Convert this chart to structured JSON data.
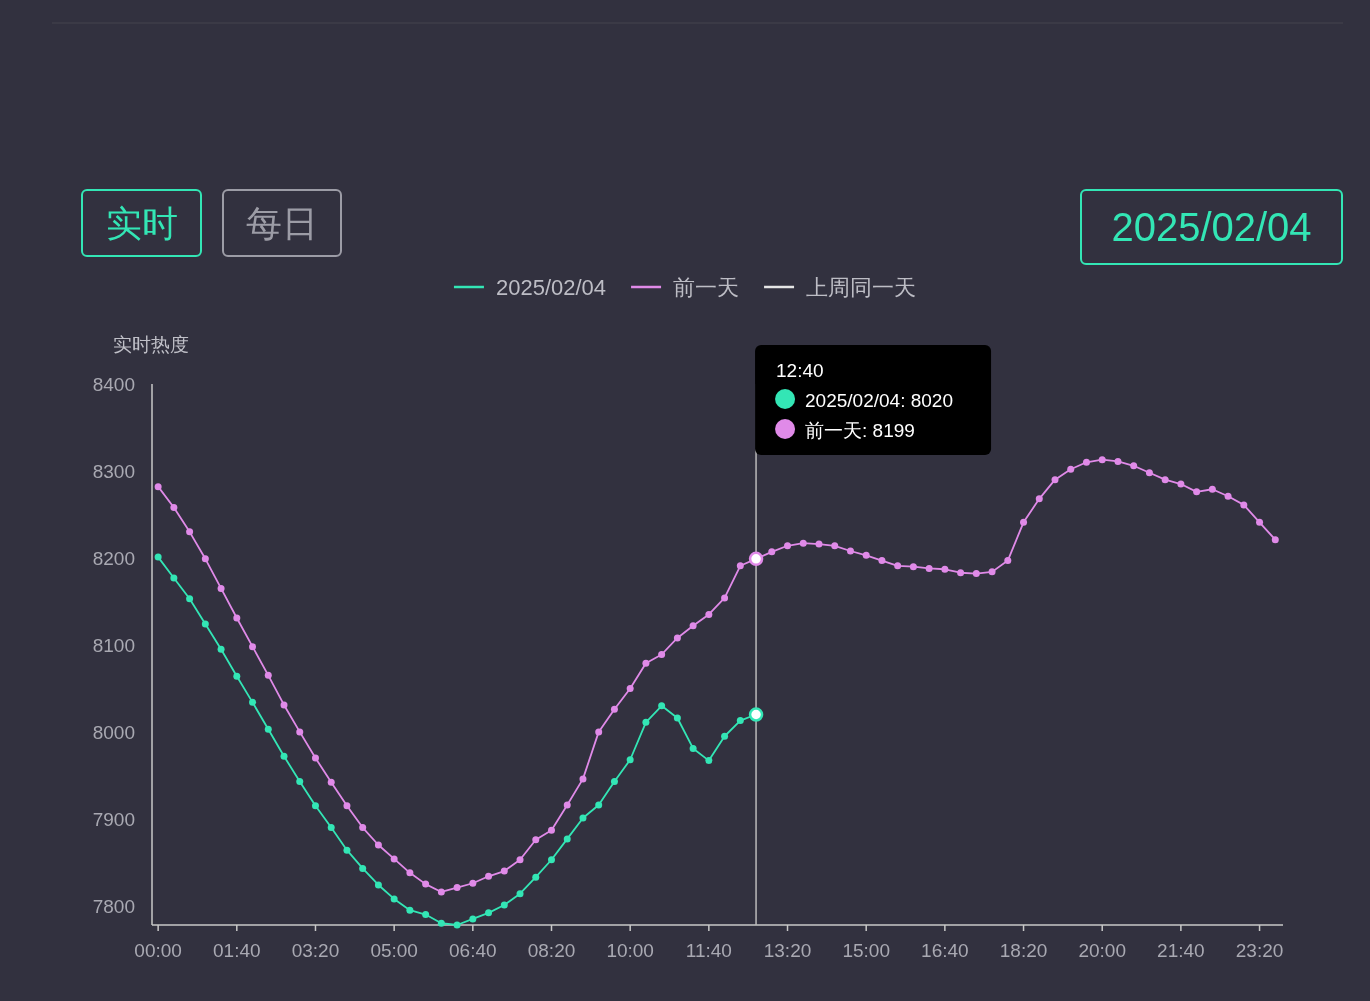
{
  "chart_data": {
    "type": "line",
    "ylabel": "实时热度",
    "annotations": [
      "实时",
      "每日",
      "2025/02/04",
      "12:40",
      "2025/02/04: 8020",
      "前一天: 8199"
    ],
    "x": [
      0,
      0.3333,
      0.6667,
      1,
      1.3333,
      1.6667,
      2,
      2.3333,
      2.6667,
      3,
      3.3333,
      3.6667,
      4,
      4.3333,
      4.6667,
      5,
      5.3333,
      5.6667,
      6,
      6.3333,
      6.6667,
      7,
      7.3333,
      7.6667,
      8,
      8.3333,
      8.6667,
      9,
      9.3333,
      9.6667,
      10,
      10.3333,
      10.6667,
      11,
      11.3333,
      11.6667,
      12,
      12.3333,
      12.6667,
      13,
      13.3333,
      13.6667,
      14,
      14.3333,
      14.6667,
      15,
      15.3333,
      15.6667,
      16,
      16.3333,
      16.6667,
      17,
      17.3333,
      17.6667,
      18,
      18.3333,
      18.6667,
      19,
      19.3333,
      19.6667,
      20,
      20.3333,
      20.6667,
      21,
      21.3333,
      21.6667,
      22,
      22.3333,
      22.6667,
      23,
      23.3333,
      23.6667
    ],
    "series": [
      {
        "name": "2025/02/04",
        "color": "#33e6b5",
        "values": [
          8201,
          8177,
          8153,
          8124,
          8095,
          8064,
          8034,
          8003,
          7972,
          7943,
          7915,
          7890,
          7864,
          7843,
          7824,
          7808,
          7795,
          7790,
          7780,
          7778,
          7785,
          7792,
          7801,
          7814,
          7833,
          7853,
          7877,
          7901,
          7916,
          7943,
          7968,
          8011,
          8030,
          8016,
          7981,
          7967,
          7995,
          8013,
          8020,
          null,
          null,
          null,
          null,
          null,
          null,
          null,
          null,
          null,
          null,
          null,
          null,
          null,
          null,
          null,
          null,
          null,
          null,
          null,
          null,
          null,
          null,
          null,
          null,
          null,
          null,
          null,
          null,
          null,
          null,
          null,
          null,
          null
        ]
      },
      {
        "name": "前一天",
        "color": "#e08ae8",
        "values": [
          8282,
          8258,
          8230,
          8199,
          8165,
          8131,
          8098,
          8065,
          8031,
          8000,
          7970,
          7942,
          7915,
          7890,
          7870,
          7854,
          7838,
          7825,
          7816,
          7821,
          7826,
          7834,
          7840,
          7853,
          7876,
          7887,
          7916,
          7946,
          8000,
          8026,
          8050,
          8079,
          8089,
          8108,
          8122,
          8135,
          8154,
          8191,
          8199,
          8207,
          8214,
          8217,
          8216,
          8214,
          8208,
          8203,
          8197,
          8191,
          8190,
          8188,
          8187,
          8183,
          8182,
          8184,
          8197,
          8241,
          8268,
          8290,
          8302,
          8310,
          8313,
          8311,
          8306,
          8298,
          8290,
          8285,
          8276,
          8279,
          8271,
          8261,
          8241,
          8221
        ]
      },
      {
        "name": "上周同一天",
        "color": "#e6e6e6",
        "values": [
          null,
          null,
          null,
          null,
          null,
          null,
          null,
          null,
          null,
          null,
          null,
          null,
          null,
          null,
          null,
          null,
          null,
          null,
          null,
          null,
          null,
          null,
          null,
          null,
          null,
          null,
          null,
          null,
          null,
          null,
          null,
          null,
          null,
          null,
          null,
          null,
          null,
          null,
          null,
          null,
          null,
          null,
          null,
          null,
          null,
          null,
          null,
          null,
          null,
          null,
          null,
          null,
          null,
          null,
          null,
          null,
          null,
          null,
          null,
          null,
          null,
          null,
          null,
          null,
          null,
          null,
          null,
          null,
          null,
          null,
          null,
          null
        ]
      }
    ],
    "xlim": [
      -0.13,
      23.83
    ],
    "xticks": [
      {
        "value": 0,
        "label": "00:00"
      },
      {
        "value": 1.6667,
        "label": "01:40"
      },
      {
        "value": 3.3333,
        "label": "03:20"
      },
      {
        "value": 5,
        "label": "05:00"
      },
      {
        "value": 6.6667,
        "label": "06:40"
      },
      {
        "value": 8.3333,
        "label": "08:20"
      },
      {
        "value": 10,
        "label": "10:00"
      },
      {
        "value": 11.6667,
        "label": "11:40"
      },
      {
        "value": 13.3333,
        "label": "13:20"
      },
      {
        "value": 15,
        "label": "15:00"
      },
      {
        "value": 16.6667,
        "label": "16:40"
      },
      {
        "value": 18.3333,
        "label": "18:20"
      },
      {
        "value": 20,
        "label": "20:00"
      },
      {
        "value": 21.6667,
        "label": "21:40"
      },
      {
        "value": 23.3333,
        "label": "23:20"
      }
    ],
    "ylim": [
      7778,
      8400
    ],
    "yticks": [
      7800,
      7900,
      8000,
      8100,
      8200,
      8300,
      8400
    ],
    "ref_lines": [
      {
        "axis": "x",
        "value": 12.6667,
        "color": "#bbbbbb"
      }
    ],
    "legend": "top",
    "marker": "circle",
    "line_style": "solid"
  }
}
